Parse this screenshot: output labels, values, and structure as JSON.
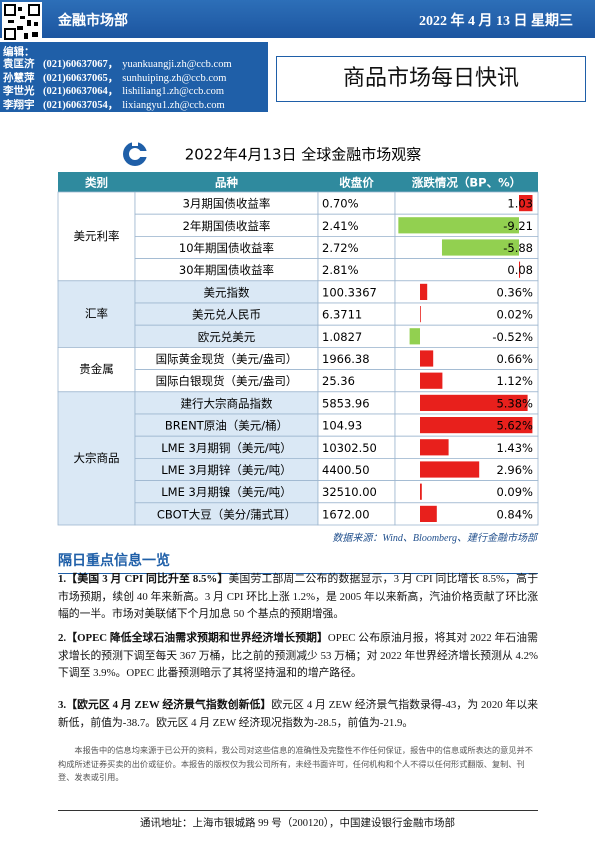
{
  "header": {
    "department": "金融市场部",
    "date": "2022 年 4 月 13 日  星期三",
    "report_title": "商品市场每日快讯",
    "editors_label": "编辑：",
    "editors": [
      {
        "name": "袁匡济",
        "phone": "(021)60637067，",
        "email": "yuankuangji.zh@ccb.com"
      },
      {
        "name": "孙慧萍",
        "phone": "(021)60637065，",
        "email": "sunhuiping.zh@ccb.com"
      },
      {
        "name": "李世光",
        "phone": "(021)60637064，",
        "email": "lishiliang1.zh@ccb.com"
      },
      {
        "name": "李翔宇",
        "phone": "(021)60637054，",
        "email": "lixiangyu1.zh@ccb.com"
      }
    ]
  },
  "table": {
    "title": "2022年4月13日  全球金融市场观察",
    "columns": [
      "类别",
      "品种",
      "收盘价",
      "涨跌情况（BP、%）"
    ],
    "groups": [
      {
        "category": "美元利率",
        "rows": [
          {
            "item": "3月期国债收益率",
            "close": "0.70%",
            "change": 1.03
          },
          {
            "item": "2年期国债收益率",
            "close": "2.41%",
            "change": -9.21
          },
          {
            "item": "10年期国债收益率",
            "close": "2.72%",
            "change": -5.88
          },
          {
            "item": "30年期国债收益率",
            "close": "2.81%",
            "change": 0.08
          }
        ]
      },
      {
        "category": "汇率",
        "rows": [
          {
            "item": "美元指数",
            "close": "100.3367",
            "change": 0.36,
            "change_label": "0.36%"
          },
          {
            "item": "美元兑人民币",
            "close": "6.3711",
            "change": 0.02,
            "change_label": "0.02%"
          },
          {
            "item": "欧元兑美元",
            "close": "1.0827",
            "change": -0.52,
            "change_label": "-0.52%"
          }
        ]
      },
      {
        "category": "贵金属",
        "rows": [
          {
            "item": "国际黄金现货（美元/盎司）",
            "close": "1966.38",
            "change": 0.66,
            "change_label": "0.66%"
          },
          {
            "item": "国际白银现货（美元/盎司）",
            "close": "25.36",
            "change": 1.12,
            "change_label": "1.12%"
          }
        ]
      },
      {
        "category": "大宗商品",
        "rows": [
          {
            "item": "建行大宗商品指数",
            "close": "5853.96",
            "change": 5.38,
            "change_label": "5.38%"
          },
          {
            "item": "BRENT原油（美元/桶）",
            "close": "104.93",
            "change": 5.62,
            "change_label": "5.62%"
          },
          {
            "item": "LME 3月期铜（美元/吨）",
            "close": "10302.50",
            "change": 1.43,
            "change_label": "1.43%"
          },
          {
            "item": "LME 3月期锌（美元/吨）",
            "close": "4400.50",
            "change": 2.96,
            "change_label": "2.96%"
          },
          {
            "item": "LME 3月期镍（美元/吨）",
            "close": "32510.00",
            "change": 0.09,
            "change_label": "0.09%"
          },
          {
            "item": "CBOT大豆（美分/蒲式耳）",
            "close": "1672.00",
            "change": 0.84,
            "change_label": "0.84%"
          }
        ]
      }
    ],
    "source": "数据来源：Wind、Bloomberg、建行金融市场部"
  },
  "news": {
    "title": "隔日重点信息一览",
    "items": [
      {
        "heading": "1.【美国 3 月 CPI 同比升至 8.5%】",
        "text": "美国劳工部周二公布的数据显示，3 月 CPI 同比增长 8.5%，高于市场预期，续创 40 年来新高。3 月 CPI 环比上涨 1.2%，是 2005 年以来新高，汽油价格贡献了环比涨幅的一半。市场对美联储下个月加息 50 个基点的预期增强。"
      },
      {
        "heading": "2.【OPEC 降低全球石油需求预期和世界经济增长预期】",
        "text": "OPEC 公布原油月报，将其对 2022 年石油需求增长的预测下调至每天 367 万桶，比之前的预测减少 53 万桶；对 2022 年世界经济增长预测从 4.2%下调至 3.9%。OPEC 此番预测暗示了其将坚持温和的增产路径。"
      },
      {
        "heading": "3.【欧元区 4 月 ZEW 经济景气指数创新低】",
        "text": "欧元区 4 月 ZEW 经济景气指数录得-43，为 2020 年以来新低，前值为-38.7。欧元区 4 月 ZEW 经济现况指数为-28.5，前值为-21.9。"
      }
    ]
  },
  "disclaimer": "本报告中的信息均来源于已公开的资料，我公司对这些信息的准确性及完整性不作任何保证，报告中的信息或所表达的意见并不构成所述证券买卖的出价或征价。本报告的版权仅为我公司所有，未经书面许可，任何机构和个人不得以任何形式翻版、复制、刊登、发表或引用。",
  "footer": {
    "address": "通讯地址：上海市银城路 99 号（200120），中国建设银行金融市场部"
  }
}
